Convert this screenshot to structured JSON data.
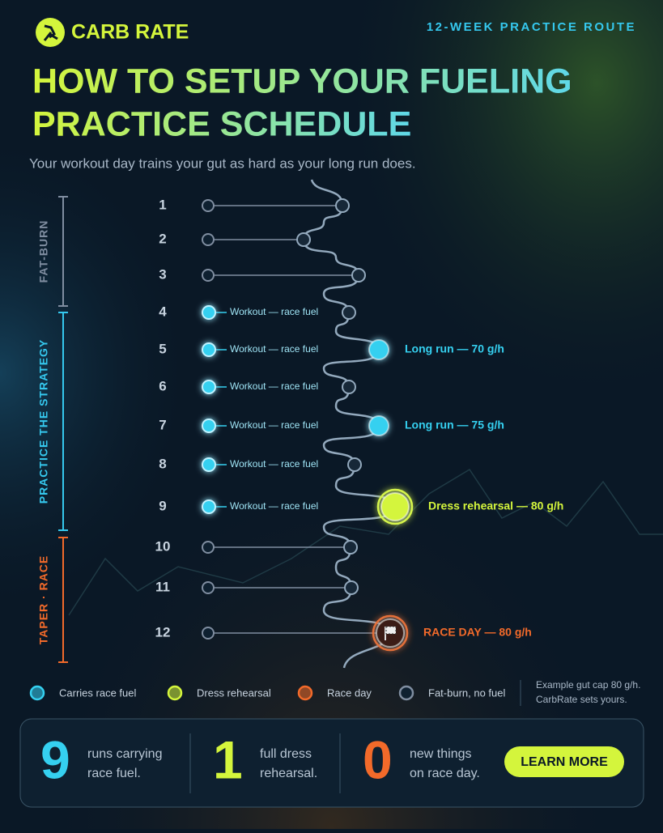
{
  "header": {
    "brand": "CARB RATE",
    "tagline": "12-WEEK PRACTICE ROUTE",
    "title_line1": "HOW TO SETUP YOUR FUELING",
    "title_line2": "PRACTICE SCHEDULE",
    "subtitle": "Your workout day trains your gut as hard as your long run does."
  },
  "phases": [
    {
      "label": "FAT-BURN",
      "color": "#7f8da0"
    },
    {
      "label": "PRACTICE THE STRATEGY",
      "color": "#35c8ee"
    },
    {
      "label": "TAPER · RACE",
      "color": "#f26a2a"
    }
  ],
  "weeks": [
    {
      "number": "1"
    },
    {
      "number": "2"
    },
    {
      "number": "3"
    },
    {
      "number": "4",
      "workout": "Workout — race fuel"
    },
    {
      "number": "5",
      "workout": "Workout — race fuel",
      "stop": "Long run — 70 g/h",
      "stop_color": "#35d0f0"
    },
    {
      "number": "6",
      "workout": "Workout — race fuel"
    },
    {
      "number": "7",
      "workout": "Workout — race fuel",
      "stop": "Long run — 75 g/h",
      "stop_color": "#35d0f0"
    },
    {
      "number": "8",
      "workout": "Workout — race fuel"
    },
    {
      "number": "9",
      "workout": "Workout — race fuel",
      "stop": "Dress rehearsal — 80 g/h",
      "stop_color": "#d4f53c"
    },
    {
      "number": "10"
    },
    {
      "number": "11"
    },
    {
      "number": "12",
      "stop": "RACE DAY — 80 g/h",
      "stop_color": "#f26a2a"
    }
  ],
  "legend": [
    {
      "label": "Carries race fuel",
      "color": "#35d0f0"
    },
    {
      "label": "Dress rehearsal",
      "color": "#d4f53c"
    },
    {
      "label": "Race day",
      "color": "#f26a2a"
    },
    {
      "label": "Fat-burn, no fuel",
      "color": "#7f8da0"
    }
  ],
  "note": {
    "line1": "Example gut cap 80 g/h.",
    "line2": "CarbRate sets yours."
  },
  "stats": [
    {
      "value": "9",
      "line1": "runs carrying",
      "line2": "race fuel.",
      "color": "#35d0f0"
    },
    {
      "value": "1",
      "line1": "full dress",
      "line2": "rehearsal.",
      "color": "#d4f53c"
    },
    {
      "value": "0",
      "line1": "new things",
      "line2": "on race day.",
      "color": "#f26a2a"
    }
  ],
  "cta": "LEARN MORE"
}
